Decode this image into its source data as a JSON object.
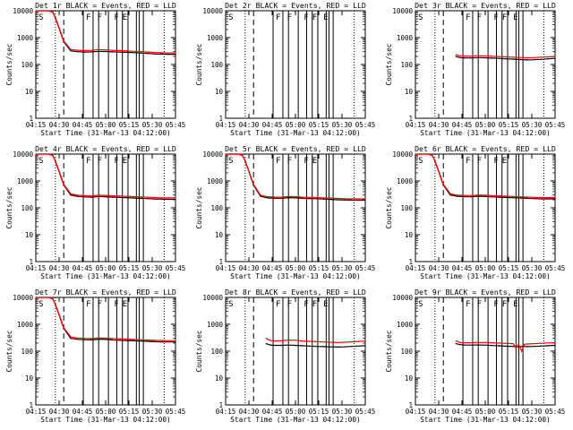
{
  "figure": {
    "xlabel": "Start Time (31-Mar-13 04:12:00)",
    "ylabel": "Counts/sec"
  },
  "legend_colors": {
    "events": "#000000",
    "lld": "#ff0000"
  },
  "chart_data": [
    {
      "type": "line",
      "title": "Det 1r BLACK = Events, RED = LLD",
      "x_ticks": [
        "04:15",
        "04:30",
        "04:45",
        "05:00",
        "05:15",
        "05:30",
        "05:45"
      ],
      "y_ticks": [
        "1",
        "10",
        "100",
        "1000",
        "10000"
      ],
      "xlim": [
        0,
        100
      ],
      "ylim": [
        1,
        10000
      ],
      "yscale": "log",
      "flags": [
        "S",
        "F",
        "F",
        "F",
        "E"
      ],
      "series": [
        {
          "name": "Events",
          "color": "#000000",
          "x": [
            0,
            4,
            9,
            12,
            14,
            17,
            20,
            25,
            30,
            35,
            40,
            45,
            50,
            55,
            60,
            65,
            70,
            75,
            80,
            85,
            90,
            95,
            100
          ],
          "values": [
            10000,
            10000,
            10000,
            9000,
            5500,
            2000,
            700,
            320,
            300,
            290,
            295,
            310,
            305,
            295,
            290,
            285,
            275,
            268,
            258,
            248,
            243,
            240,
            240
          ]
        },
        {
          "name": "LLD",
          "color": "#ff0000",
          "x": [
            0,
            4,
            9,
            12,
            14,
            17,
            20,
            25,
            30,
            35,
            40,
            45,
            50,
            55,
            60,
            65,
            70,
            75,
            80,
            85,
            90,
            95,
            100
          ],
          "values": [
            10000,
            10000,
            10000,
            9300,
            5800,
            2100,
            750,
            360,
            340,
            330,
            335,
            360,
            350,
            335,
            330,
            322,
            310,
            302,
            290,
            280,
            273,
            270,
            270
          ]
        }
      ]
    },
    {
      "type": "line",
      "title": "Det 2r BLACK = Events, RED = LLD",
      "x_ticks": [
        "04:15",
        "04:30",
        "04:45",
        "05:00",
        "05:15",
        "05:30",
        "05:45"
      ],
      "y_ticks": [
        "1",
        "10",
        "100",
        "1000",
        "10000"
      ],
      "xlim": [
        0,
        100
      ],
      "ylim": [
        1,
        10000
      ],
      "yscale": "log",
      "flags": [
        "S",
        "F",
        "F",
        "F",
        "F",
        "E"
      ],
      "series": []
    },
    {
      "type": "line",
      "title": "Det 3r BLACK = Events, RED = LLD",
      "x_ticks": [
        "04:15",
        "04:30",
        "04:45",
        "05:00",
        "05:15",
        "05:30",
        "05:45"
      ],
      "y_ticks": [
        "1",
        "10",
        "100",
        "1000",
        "10000"
      ],
      "xlim": [
        0,
        100
      ],
      "ylim": [
        1,
        10000
      ],
      "yscale": "log",
      "flags": [
        "S",
        "F",
        "F",
        "F",
        "F",
        "E"
      ],
      "series": [
        {
          "name": "Events",
          "color": "#000000",
          "x": [
            29,
            32,
            35,
            40,
            45,
            50,
            55,
            60,
            65,
            70,
            75,
            80,
            85,
            90,
            95,
            100
          ],
          "values": [
            200,
            180,
            175,
            175,
            180,
            178,
            172,
            168,
            162,
            158,
            152,
            148,
            150,
            155,
            162,
            168
          ]
        },
        {
          "name": "LLD",
          "color": "#ff0000",
          "x": [
            29,
            32,
            35,
            40,
            45,
            50,
            55,
            60,
            65,
            70,
            75,
            80,
            85,
            90,
            95,
            100
          ],
          "values": [
            230,
            210,
            205,
            205,
            212,
            210,
            203,
            198,
            192,
            188,
            182,
            178,
            180,
            186,
            192,
            198
          ]
        }
      ]
    },
    {
      "type": "line",
      "title": "Det 4r BLACK = Events, RED = LLD",
      "x_ticks": [
        "04:15",
        "04:30",
        "04:45",
        "05:00",
        "05:15",
        "05:30",
        "05:45"
      ],
      "y_ticks": [
        "1",
        "10",
        "100",
        "1000",
        "10000"
      ],
      "xlim": [
        0,
        100
      ],
      "ylim": [
        1,
        10000
      ],
      "yscale": "log",
      "flags": [
        "S",
        "F",
        "F",
        "F",
        "E"
      ],
      "series": [
        {
          "name": "Events",
          "color": "#000000",
          "x": [
            0,
            4,
            9,
            12,
            14,
            17,
            20,
            25,
            30,
            35,
            40,
            45,
            50,
            55,
            60,
            65,
            70,
            75,
            80,
            85,
            90,
            95,
            100
          ],
          "values": [
            10000,
            10000,
            10000,
            9000,
            5500,
            2000,
            700,
            300,
            265,
            255,
            250,
            265,
            260,
            250,
            245,
            238,
            232,
            226,
            220,
            214,
            210,
            208,
            208
          ]
        },
        {
          "name": "LLD",
          "color": "#ff0000",
          "x": [
            0,
            4,
            9,
            12,
            14,
            17,
            20,
            25,
            30,
            35,
            40,
            45,
            50,
            55,
            60,
            65,
            70,
            75,
            80,
            85,
            90,
            95,
            100
          ],
          "values": [
            10000,
            10000,
            10000,
            9300,
            5800,
            2100,
            750,
            330,
            295,
            285,
            280,
            295,
            290,
            280,
            275,
            268,
            262,
            255,
            248,
            242,
            237,
            235,
            235
          ]
        }
      ]
    },
    {
      "type": "line",
      "title": "Det 5r BLACK = Events, RED = LLD",
      "x_ticks": [
        "04:15",
        "04:30",
        "04:45",
        "05:00",
        "05:15",
        "05:30",
        "05:45"
      ],
      "y_ticks": [
        "1",
        "10",
        "100",
        "1000",
        "10000"
      ],
      "xlim": [
        0,
        100
      ],
      "ylim": [
        1,
        10000
      ],
      "yscale": "log",
      "flags": [
        "S",
        "F",
        "F",
        "F",
        "E"
      ],
      "series": [
        {
          "name": "Events",
          "color": "#000000",
          "x": [
            0,
            4,
            9,
            12,
            14,
            17,
            20,
            25,
            30,
            35,
            40,
            45,
            50,
            55,
            60,
            65,
            70,
            75,
            80,
            85,
            90,
            95,
            100
          ],
          "values": [
            10000,
            10000,
            10000,
            9000,
            5500,
            2000,
            700,
            270,
            235,
            228,
            225,
            240,
            235,
            225,
            222,
            218,
            212,
            206,
            200,
            196,
            193,
            192,
            192
          ]
        },
        {
          "name": "LLD",
          "color": "#ff0000",
          "x": [
            0,
            4,
            9,
            12,
            14,
            17,
            20,
            25,
            30,
            35,
            40,
            45,
            50,
            55,
            60,
            65,
            70,
            75,
            80,
            85,
            90,
            95,
            100
          ],
          "values": [
            10000,
            10000,
            10000,
            9300,
            5800,
            2100,
            750,
            295,
            260,
            252,
            250,
            265,
            260,
            250,
            246,
            242,
            236,
            230,
            224,
            219,
            216,
            215,
            215
          ]
        }
      ]
    },
    {
      "type": "line",
      "title": "Det 6r BLACK = Events, RED = LLD",
      "x_ticks": [
        "04:15",
        "04:30",
        "04:45",
        "05:00",
        "05:15",
        "05:30",
        "05:45"
      ],
      "y_ticks": [
        "1",
        "10",
        "100",
        "1000",
        "10000"
      ],
      "xlim": [
        0,
        100
      ],
      "ylim": [
        1,
        10000
      ],
      "yscale": "log",
      "flags": [
        "S",
        "F",
        "F",
        "F",
        "E"
      ],
      "series": [
        {
          "name": "Events",
          "color": "#000000",
          "x": [
            0,
            4,
            9,
            12,
            14,
            17,
            20,
            25,
            30,
            35,
            40,
            45,
            50,
            55,
            60,
            65,
            70,
            75,
            80,
            85,
            90,
            95,
            100
          ],
          "values": [
            10000,
            10000,
            10000,
            9000,
            5500,
            2000,
            700,
            300,
            270,
            262,
            258,
            272,
            266,
            256,
            250,
            244,
            238,
            232,
            226,
            220,
            216,
            215,
            215
          ]
        },
        {
          "name": "LLD",
          "color": "#ff0000",
          "x": [
            0,
            4,
            9,
            12,
            14,
            17,
            20,
            25,
            30,
            35,
            40,
            45,
            50,
            55,
            60,
            65,
            70,
            75,
            80,
            85,
            90,
            95,
            100
          ],
          "values": [
            10000,
            10000,
            10000,
            9300,
            5800,
            2100,
            750,
            330,
            298,
            290,
            286,
            300,
            294,
            284,
            278,
            272,
            265,
            258,
            251,
            245,
            241,
            240,
            240
          ]
        }
      ]
    },
    {
      "type": "line",
      "title": "Det 7r BLACK = Events, RED = LLD",
      "x_ticks": [
        "04:15",
        "04:30",
        "04:45",
        "05:00",
        "05:15",
        "05:30",
        "05:45"
      ],
      "y_ticks": [
        "1",
        "10",
        "100",
        "1000",
        "10000"
      ],
      "xlim": [
        0,
        100
      ],
      "ylim": [
        1,
        10000
      ],
      "yscale": "log",
      "flags": [
        "S",
        "F",
        "F",
        "F",
        "E"
      ],
      "series": [
        {
          "name": "Events",
          "color": "#000000",
          "x": [
            0,
            4,
            9,
            12,
            14,
            17,
            20,
            25,
            30,
            35,
            40,
            45,
            50,
            55,
            60,
            65,
            70,
            75,
            80,
            85,
            90,
            95,
            100
          ],
          "values": [
            10000,
            10000,
            10000,
            9000,
            5500,
            2000,
            700,
            300,
            275,
            268,
            264,
            280,
            274,
            262,
            256,
            250,
            244,
            238,
            232,
            226,
            222,
            220,
            220
          ]
        },
        {
          "name": "LLD",
          "color": "#ff0000",
          "x": [
            0,
            4,
            9,
            12,
            14,
            17,
            20,
            25,
            30,
            35,
            40,
            45,
            50,
            55,
            60,
            65,
            70,
            75,
            80,
            85,
            90,
            95,
            100
          ],
          "values": [
            10000,
            10000,
            10000,
            9300,
            5800,
            2100,
            750,
            340,
            310,
            300,
            296,
            312,
            305,
            294,
            288,
            281,
            274,
            267,
            260,
            254,
            249,
            248,
            248
          ]
        }
      ]
    },
    {
      "type": "line",
      "title": "Det 8r BLACK = Events, RED = LLD",
      "x_ticks": [
        "04:15",
        "04:30",
        "04:45",
        "05:00",
        "05:15",
        "05:30",
        "05:45"
      ],
      "y_ticks": [
        "1",
        "10",
        "100",
        "1000",
        "10000"
      ],
      "xlim": [
        0,
        100
      ],
      "ylim": [
        1,
        10000
      ],
      "yscale": "log",
      "flags": [
        "S",
        "F",
        "F",
        "F",
        "F",
        "E"
      ],
      "series": [
        {
          "name": "Events",
          "color": "#000000",
          "x": [
            29,
            32,
            35,
            40,
            45,
            50,
            55,
            60,
            65,
            70,
            75,
            80,
            85,
            90,
            95,
            100
          ],
          "values": [
            190,
            170,
            165,
            165,
            168,
            165,
            160,
            155,
            150,
            148,
            145,
            142,
            145,
            150,
            155,
            160
          ]
        },
        {
          "name": "LLD",
          "color": "#ff0000",
          "x": [
            29,
            32,
            35,
            40,
            45,
            50,
            55,
            60,
            65,
            70,
            75,
            80,
            85,
            90,
            95,
            100
          ],
          "values": [
            300,
            250,
            240,
            245,
            260,
            255,
            240,
            232,
            225,
            220,
            215,
            210,
            215,
            222,
            230,
            240
          ]
        }
      ]
    },
    {
      "type": "line",
      "title": "Det 9r BLACK = Events, RED = LLD",
      "x_ticks": [
        "04:15",
        "04:30",
        "04:45",
        "05:00",
        "05:15",
        "05:30",
        "05:45"
      ],
      "y_ticks": [
        "1",
        "10",
        "100",
        "1000",
        "10000"
      ],
      "xlim": [
        0,
        100
      ],
      "ylim": [
        1,
        10000
      ],
      "yscale": "log",
      "flags": [
        "S",
        "F",
        "F",
        "F",
        "F",
        "E"
      ],
      "series": [
        {
          "name": "Events",
          "color": "#000000",
          "x": [
            29,
            32,
            35,
            40,
            45,
            50,
            55,
            60,
            65,
            70,
            72,
            74,
            76,
            78,
            80,
            85,
            90,
            95,
            100
          ],
          "values": [
            190,
            175,
            168,
            168,
            170,
            168,
            162,
            158,
            152,
            150,
            148,
            145,
            148,
            150,
            148,
            150,
            155,
            160,
            165
          ]
        },
        {
          "name": "LLD",
          "color": "#ff0000",
          "x": [
            29,
            32,
            35,
            40,
            45,
            50,
            55,
            60,
            65,
            70,
            72,
            74,
            76,
            78,
            80,
            85,
            90,
            95,
            100
          ],
          "values": [
            240,
            210,
            205,
            208,
            212,
            210,
            205,
            200,
            195,
            190,
            130,
            185,
            100,
            180,
            185,
            190,
            196,
            202,
            208
          ]
        }
      ]
    }
  ]
}
